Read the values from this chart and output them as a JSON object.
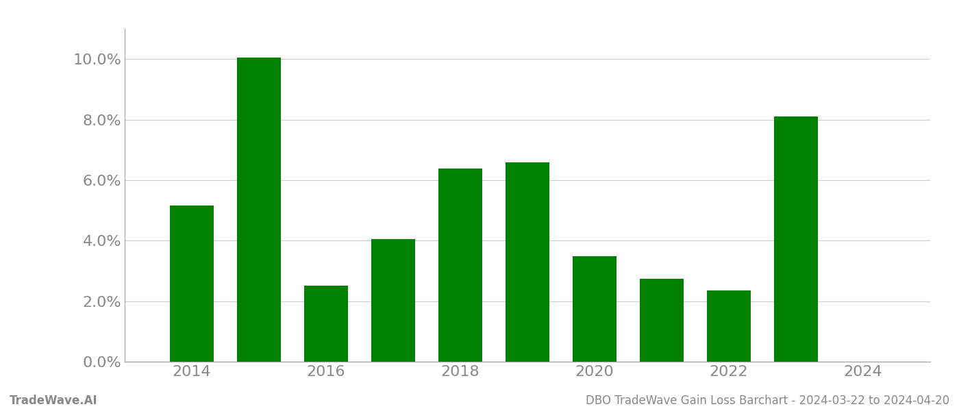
{
  "years": [
    2014,
    2015,
    2016,
    2017,
    2018,
    2019,
    2020,
    2021,
    2022,
    2023
  ],
  "values": [
    0.0515,
    0.1005,
    0.0252,
    0.0405,
    0.0638,
    0.0658,
    0.0348,
    0.0275,
    0.0235,
    0.081
  ],
  "bar_color": "#008000",
  "bar_width": 0.65,
  "ylim": [
    0,
    0.11
  ],
  "yticks": [
    0.0,
    0.02,
    0.04,
    0.06,
    0.08,
    0.1
  ],
  "xtick_positions": [
    2014,
    2016,
    2018,
    2020,
    2022,
    2024
  ],
  "xtick_labels": [
    "2014",
    "2016",
    "2018",
    "2020",
    "2022",
    "2024"
  ],
  "footer_left": "TradeWave.AI",
  "footer_right": "DBO TradeWave Gain Loss Barchart - 2024-03-22 to 2024-04-20",
  "background_color": "#ffffff",
  "grid_color": "#cccccc",
  "tick_label_color": "#888888",
  "footer_color": "#888888",
  "ytick_fontsize": 16,
  "xtick_fontsize": 16,
  "footer_fontsize": 12
}
